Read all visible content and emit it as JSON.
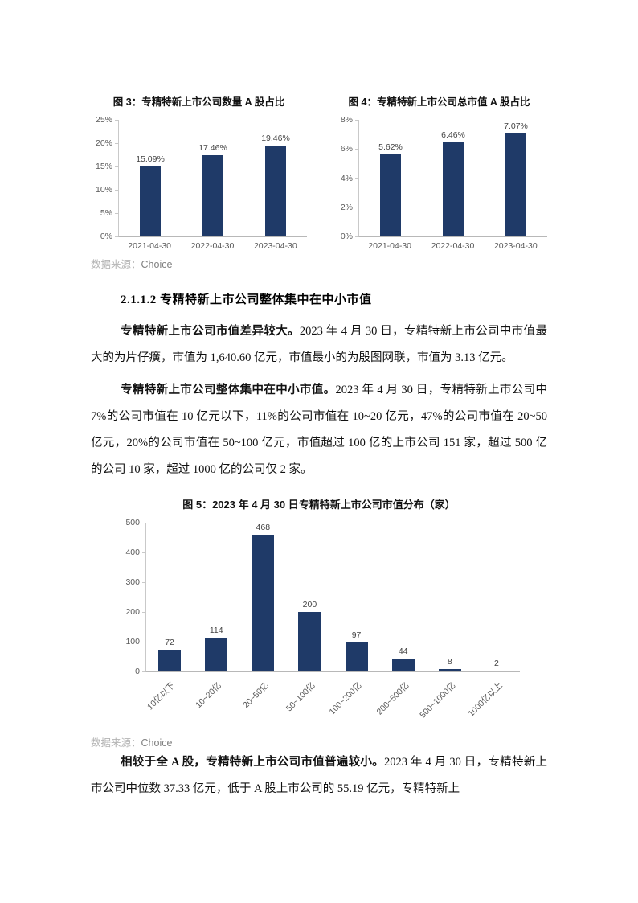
{
  "source_note": {
    "label": "数据来源：",
    "value": "Choice"
  },
  "section": {
    "heading": "2.1.1.2 专精特新上市公司整体集中在中小市值"
  },
  "paragraphs": {
    "p1_lead": "专精特新上市公司市值差异较大。",
    "p1_rest": "2023 年 4 月 30 日，专精特新上市公司中市值最大的为片仔癀，市值为 1,640.60 亿元，市值最小的为殷图网联，市值为 3.13 亿元。",
    "p2_lead": "专精特新上市公司整体集中在中小市值。",
    "p2_rest": "2023 年 4 月 30 日，专精特新上市公司中 7%的公司市值在 10 亿元以下，11%的公司市值在 10~20 亿元，47%的公司市值在 20~50 亿元，20%的公司市值在 50~100 亿元，市值超过 100 亿的上市公司 151 家，超过 500 亿的公司 10 家，超过 1000 亿的公司仅 2 家。",
    "p3_lead": "相较于全 A 股，专精特新上市公司市值普遍较小。",
    "p3_rest": "2023 年 4 月 30 日，专精特新上市公司中位数 37.33 亿元，低于 A 股上市公司的 55.19 亿元，专精特新上"
  },
  "colors": {
    "bar_fill": "#1f3a68",
    "axis_line": "#c9c9c9",
    "tick_text": "#595959",
    "source_label": "#b3b3b3",
    "source_value": "#7f7f7f"
  },
  "chart_data": [
    {
      "id": "fig3",
      "type": "bar",
      "title": "图 3：专精特新上市公司数量 A 股占比",
      "categories": [
        "2021-04-30",
        "2022-04-30",
        "2023-04-30"
      ],
      "values": [
        15.09,
        17.46,
        19.46
      ],
      "data_labels": [
        "15.09%",
        "17.46%",
        "19.46%"
      ],
      "ylim": [
        0,
        25
      ],
      "yticks": [
        "25%",
        "20%",
        "15%",
        "10%",
        "5%",
        "0%"
      ],
      "grid": false,
      "legend": "none"
    },
    {
      "id": "fig4",
      "type": "bar",
      "title": "图 4：专精特新上市公司总市值 A 股占比",
      "categories": [
        "2021-04-30",
        "2022-04-30",
        "2023-04-30"
      ],
      "values": [
        5.62,
        6.46,
        7.07
      ],
      "data_labels": [
        "5.62%",
        "6.46%",
        "7.07%"
      ],
      "ylim": [
        0,
        8
      ],
      "yticks": [
        "8%",
        "6%",
        "4%",
        "2%",
        "0%"
      ],
      "grid": false,
      "legend": "none"
    },
    {
      "id": "fig5",
      "type": "bar",
      "title": "图 5：2023 年 4 月 30 日专精特新上市公司市值分布（家）",
      "categories": [
        "10亿以下",
        "10~20亿",
        "20~50亿",
        "50~100亿",
        "100~200亿",
        "200~500亿",
        "500~1000亿",
        "1000亿以上"
      ],
      "values": [
        72,
        114,
        468,
        200,
        97,
        44,
        8,
        2
      ],
      "data_labels": [
        "72",
        "114",
        "468",
        "200",
        "97",
        "44",
        "8",
        "2"
      ],
      "ylim": [
        0,
        500
      ],
      "yticks": [
        "500",
        "400",
        "300",
        "200",
        "100",
        "0"
      ],
      "grid": false,
      "legend": "none",
      "xtick_rotation": -45
    }
  ]
}
